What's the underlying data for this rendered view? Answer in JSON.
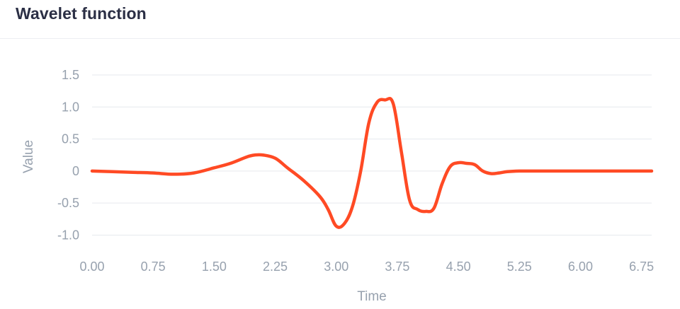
{
  "header": {
    "title": "Wavelet function"
  },
  "chart_data": {
    "type": "line",
    "title": "Wavelet function",
    "xlabel": "Time",
    "ylabel": "Value",
    "xlim": [
      0,
      6.875
    ],
    "ylim": [
      -1.05,
      1.5
    ],
    "x_ticks": [
      {
        "value": 0.0,
        "label": "0.00"
      },
      {
        "value": 0.75,
        "label": "0.75"
      },
      {
        "value": 1.5,
        "label": "1.50"
      },
      {
        "value": 2.25,
        "label": "2.25"
      },
      {
        "value": 3.0,
        "label": "3.00"
      },
      {
        "value": 3.75,
        "label": "3.75"
      },
      {
        "value": 4.5,
        "label": "4.50"
      },
      {
        "value": 5.25,
        "label": "5.25"
      },
      {
        "value": 6.0,
        "label": "6.00"
      },
      {
        "value": 6.75,
        "label": "6.75"
      }
    ],
    "y_ticks": [
      {
        "value": 1.5,
        "label": "1.5"
      },
      {
        "value": 1.0,
        "label": "1.0"
      },
      {
        "value": 0.5,
        "label": "0.5"
      },
      {
        "value": 0.0,
        "label": "0"
      },
      {
        "value": -0.5,
        "label": "-0.5"
      },
      {
        "value": -1.0,
        "label": "-1.0"
      }
    ],
    "grid": true,
    "line_color": "#ff4a24",
    "series": [
      {
        "x": [
          0.0,
          0.25,
          0.5,
          0.75,
          1.0,
          1.25,
          1.5,
          1.7,
          1.9,
          2.0,
          2.1,
          2.25,
          2.4,
          2.6,
          2.8,
          2.9,
          3.0,
          3.1,
          3.2,
          3.3,
          3.4,
          3.5,
          3.6,
          3.7,
          3.8,
          3.9,
          4.0,
          4.1,
          4.2,
          4.3,
          4.4,
          4.5,
          4.6,
          4.7,
          4.8,
          4.9,
          5.0,
          5.1,
          5.25,
          5.5,
          5.75,
          6.0,
          6.25,
          6.5,
          6.875
        ],
        "y": [
          0.0,
          -0.01,
          -0.02,
          -0.03,
          -0.05,
          -0.03,
          0.05,
          0.12,
          0.22,
          0.25,
          0.25,
          0.2,
          0.05,
          -0.15,
          -0.4,
          -0.6,
          -0.86,
          -0.82,
          -0.55,
          0.0,
          0.75,
          1.07,
          1.11,
          1.05,
          0.3,
          -0.45,
          -0.6,
          -0.63,
          -0.58,
          -0.2,
          0.07,
          0.13,
          0.12,
          0.1,
          0.0,
          -0.04,
          -0.03,
          -0.01,
          0.0,
          0.0,
          0.0,
          0.0,
          0.0,
          0.0,
          0.0
        ]
      }
    ]
  }
}
